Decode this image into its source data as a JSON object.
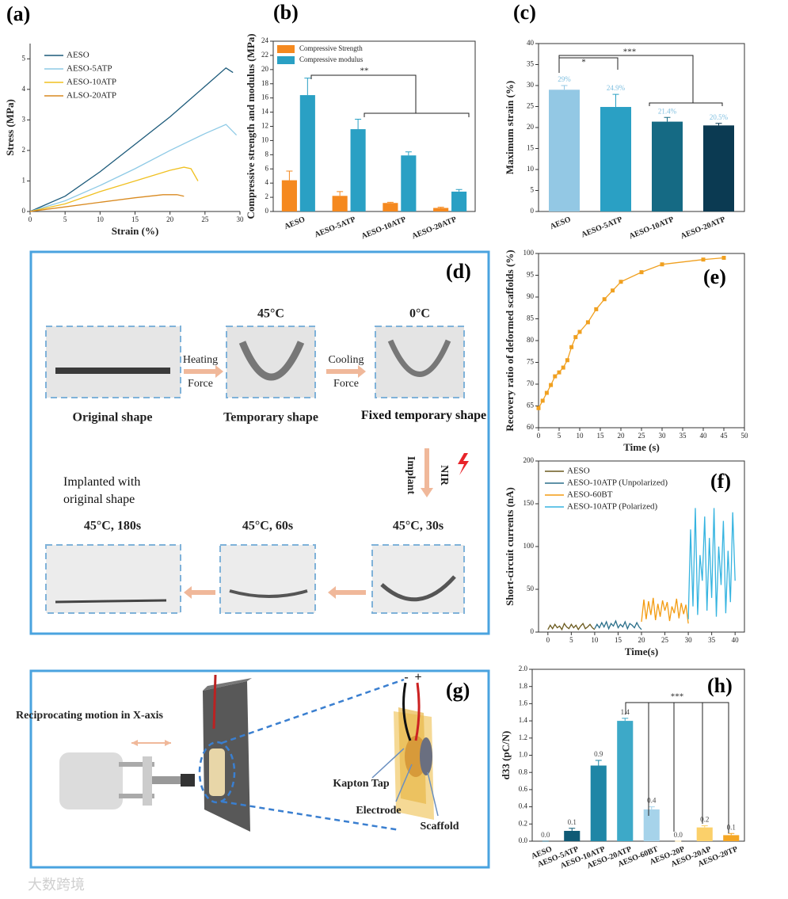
{
  "chart_data": [
    {
      "type": "line",
      "panel": "(a)",
      "xlabel": "Strain (%)",
      "ylabel": "Stress (MPa)",
      "xlim": [
        0,
        30
      ],
      "xticks": [
        0,
        5,
        10,
        15,
        20,
        25,
        30
      ],
      "ylim": [
        0,
        5.5
      ],
      "yticks": [
        0,
        1,
        2,
        3,
        4,
        5
      ],
      "legend": "upper left",
      "series": [
        {
          "name": "AESO",
          "color": "#1c5a7a",
          "x": [
            0,
            5,
            10,
            15,
            20,
            25,
            28,
            29
          ],
          "values": [
            0,
            0.5,
            1.3,
            2.2,
            3.1,
            4.1,
            4.7,
            4.55
          ]
        },
        {
          "name": "AESO-5ATP",
          "color": "#8ecae6",
          "x": [
            0,
            5,
            10,
            15,
            20,
            25,
            28,
            29.5
          ],
          "values": [
            0,
            0.35,
            0.85,
            1.4,
            2.0,
            2.55,
            2.85,
            2.5
          ]
        },
        {
          "name": "AESO-10ATP",
          "color": "#f0c020",
          "x": [
            0,
            5,
            10,
            15,
            20,
            22,
            23,
            24
          ],
          "values": [
            0,
            0.25,
            0.65,
            1.0,
            1.35,
            1.45,
            1.4,
            1.0
          ]
        },
        {
          "name": "ALSO-20ATP",
          "color": "#d98a20",
          "x": [
            0,
            5,
            10,
            15,
            19,
            21,
            22
          ],
          "values": [
            0,
            0.15,
            0.3,
            0.45,
            0.55,
            0.55,
            0.5
          ]
        }
      ]
    },
    {
      "type": "bar",
      "panel": "(b)",
      "ylabel": "Compressive strength and modulus (MPa)",
      "categories": [
        "AESO",
        "AESO-5ATP",
        "AESO-10ATP",
        "AESO-20ATP"
      ],
      "ylim": [
        0,
        24
      ],
      "yticks": [
        0,
        2,
        4,
        6,
        8,
        10,
        12,
        14,
        16,
        18,
        20,
        22,
        24
      ],
      "legend": "upper left",
      "annotations": [
        "**"
      ],
      "series": [
        {
          "name": "Compressive Strength",
          "color": "#f5891f",
          "values": [
            4.4,
            2.2,
            1.2,
            0.5
          ],
          "errors": [
            1.3,
            0.6,
            0.1,
            0.1
          ]
        },
        {
          "name": "Compressive modulus",
          "color": "#2aa0c4",
          "values": [
            16.4,
            11.6,
            7.9,
            2.8
          ],
          "errors": [
            2.4,
            1.4,
            0.5,
            0.3
          ]
        }
      ]
    },
    {
      "type": "bar",
      "panel": "(c)",
      "ylabel": "Maximum strain (%)",
      "categories": [
        "AESO",
        "AESO-5ATP",
        "AESO-10ATP",
        "AESO-20ATP"
      ],
      "ylim": [
        0,
        40
      ],
      "yticks": [
        0,
        5,
        10,
        15,
        20,
        25,
        30,
        35,
        40
      ],
      "annotations": [
        "*",
        "***"
      ],
      "series": [
        {
          "colors": [
            "#93c8e4",
            "#2aa0c4",
            "#156a84",
            "#0b3a52"
          ],
          "values": [
            29,
            24.9,
            21.4,
            20.5
          ],
          "value_labels": [
            "29%",
            "24.9%",
            "21.4%",
            "20.5%"
          ],
          "errors": [
            1,
            3,
            1,
            0.5
          ]
        }
      ]
    },
    {
      "type": "line",
      "panel": "(e)",
      "xlabel": "Time (s)",
      "ylabel": "Recovery ratio of deformed scaffolds (%)",
      "markers": true,
      "xlim": [
        0,
        50
      ],
      "xticks": [
        0,
        5,
        10,
        15,
        20,
        25,
        30,
        35,
        40,
        45,
        50
      ],
      "ylim": [
        60,
        100
      ],
      "yticks": [
        60,
        65,
        70,
        75,
        80,
        85,
        90,
        95,
        100
      ],
      "series": [
        {
          "color": "#f0a020",
          "x": [
            0,
            1,
            2,
            3,
            4,
            5,
            6,
            7,
            8,
            9,
            10,
            12,
            14,
            16,
            18,
            20,
            25,
            30,
            40,
            45
          ],
          "values": [
            64.5,
            66.2,
            68,
            69.8,
            71.8,
            72.7,
            73.8,
            75.5,
            78.5,
            80.8,
            82,
            84.2,
            87.2,
            89.5,
            91.5,
            93.5,
            95.7,
            97.5,
            98.6,
            99
          ]
        }
      ]
    },
    {
      "type": "line",
      "panel": "(f)",
      "xlabel": "Time(s)",
      "ylabel": "Short-circuit currents (nA)",
      "xlim": [
        -2,
        42
      ],
      "xticks": [
        0,
        5,
        10,
        15,
        20,
        25,
        30,
        35,
        40
      ],
      "ylim": [
        0,
        200
      ],
      "yticks": [
        0,
        50,
        100,
        150,
        200
      ],
      "legend": "upper left",
      "series": [
        {
          "name": "AESO",
          "color": "#6b5a1e",
          "x": [
            0,
            0.5,
            1,
            1.5,
            2,
            2.5,
            3,
            3.5,
            4,
            4.5,
            5,
            5.5,
            6,
            6.5,
            7,
            7.5,
            8,
            8.5,
            9,
            9.5,
            10
          ],
          "values": [
            3,
            8,
            4,
            9,
            5,
            7,
            3,
            10,
            6,
            4,
            9,
            5,
            8,
            3,
            7,
            10,
            4,
            6,
            9,
            5,
            3
          ]
        },
        {
          "name": "AESO-10ATP (Unpolarized)",
          "color": "#2a6f8a",
          "x": [
            10,
            10.5,
            11,
            11.5,
            12,
            12.5,
            13,
            13.5,
            14,
            14.5,
            15,
            15.5,
            16,
            16.5,
            17,
            17.5,
            18,
            18.5,
            19,
            19.5,
            20
          ],
          "values": [
            4,
            9,
            5,
            11,
            6,
            12,
            4,
            10,
            7,
            13,
            5,
            9,
            6,
            12,
            4,
            10,
            8,
            5,
            11,
            6,
            3
          ]
        },
        {
          "name": "AESO-60BT",
          "color": "#f39c12",
          "x": [
            20,
            20.5,
            21,
            21.5,
            22,
            22.5,
            23,
            23.5,
            24,
            24.5,
            25,
            25.5,
            26,
            26.5,
            27,
            27.5,
            28,
            28.5,
            29,
            29.5,
            30
          ],
          "values": [
            12,
            38,
            15,
            36,
            20,
            40,
            14,
            33,
            18,
            37,
            25,
            35,
            13,
            30,
            22,
            39,
            16,
            34,
            21,
            32,
            10
          ]
        },
        {
          "name": "AESO-10ATP (Polarized)",
          "color": "#36b4e0",
          "x": [
            30,
            30.5,
            31,
            31.5,
            32,
            32.5,
            33,
            33.5,
            34,
            34.5,
            35,
            35.5,
            36,
            36.5,
            37,
            37.5,
            38,
            38.5,
            39,
            39.5,
            40
          ],
          "values": [
            15,
            120,
            30,
            145,
            20,
            90,
            60,
            135,
            25,
            110,
            40,
            145,
            18,
            100,
            55,
            130,
            22,
            95,
            35,
            140,
            60
          ]
        }
      ]
    },
    {
      "type": "bar",
      "panel": "(h)",
      "ylabel": "d33 (pC/N)",
      "categories": [
        "AESO",
        "AESO-5ATP",
        "AESO-10ATP",
        "AESO-20ATP",
        "AESO-60BT",
        "AESO-20P",
        "AESO-20AP",
        "AESO-20TP"
      ],
      "ylim": [
        0,
        2.0
      ],
      "yticks": [
        {
          "value": 0,
          "label": "0.0"
        },
        0.2,
        0.4,
        0.6,
        0.8,
        {
          "value": 1,
          "label": "1.0"
        },
        1.2,
        1.4,
        1.6,
        1.8,
        {
          "value": 2,
          "label": "2.0"
        }
      ],
      "annotations": [
        "***"
      ],
      "series": [
        {
          "colors": [
            "#0f5a75",
            "#0f5a75",
            "#1f86a6",
            "#3da9c8",
            "#a6d3ea",
            "#fbe3a0",
            "#fbd06a",
            "#f5a623"
          ],
          "values": [
            0,
            0.12,
            0.88,
            1.4,
            0.37,
            0,
            0.16,
            0.07
          ],
          "value_labels": [
            "0.0",
            "0.1",
            "0.9",
            "1.4",
            "0.4",
            "0.0",
            "0.2",
            "0.1"
          ],
          "errors": [
            0,
            0.03,
            0.06,
            0.03,
            0.03,
            0,
            0.02,
            0.02
          ]
        }
      ]
    }
  ],
  "figure_d": {
    "panel": "(d)",
    "temp_1": "45°C",
    "temp_2": "0°C",
    "heating": "Heating",
    "force_1": "Force",
    "cooling": "Cooling",
    "force_2": "Force",
    "shape_1": "Original shape",
    "shape_2": "Temporary shape",
    "shape_3": "Fixed temporary shape",
    "implant": "Implant",
    "nir": "NIR",
    "implanted": "Implanted with original shape",
    "time_1": "45°C, 180s",
    "time_2": "45°C, 60s",
    "time_3": "45°C, 30s"
  },
  "figure_g": {
    "panel": "(g)",
    "motion": "Reciprocating motion in X-axis",
    "kapton": "Kapton Tap",
    "electrode": "Electrode",
    "scaffold": "Scaffold",
    "minus": "-",
    "plus": "+"
  },
  "watermark": "大数跨境"
}
